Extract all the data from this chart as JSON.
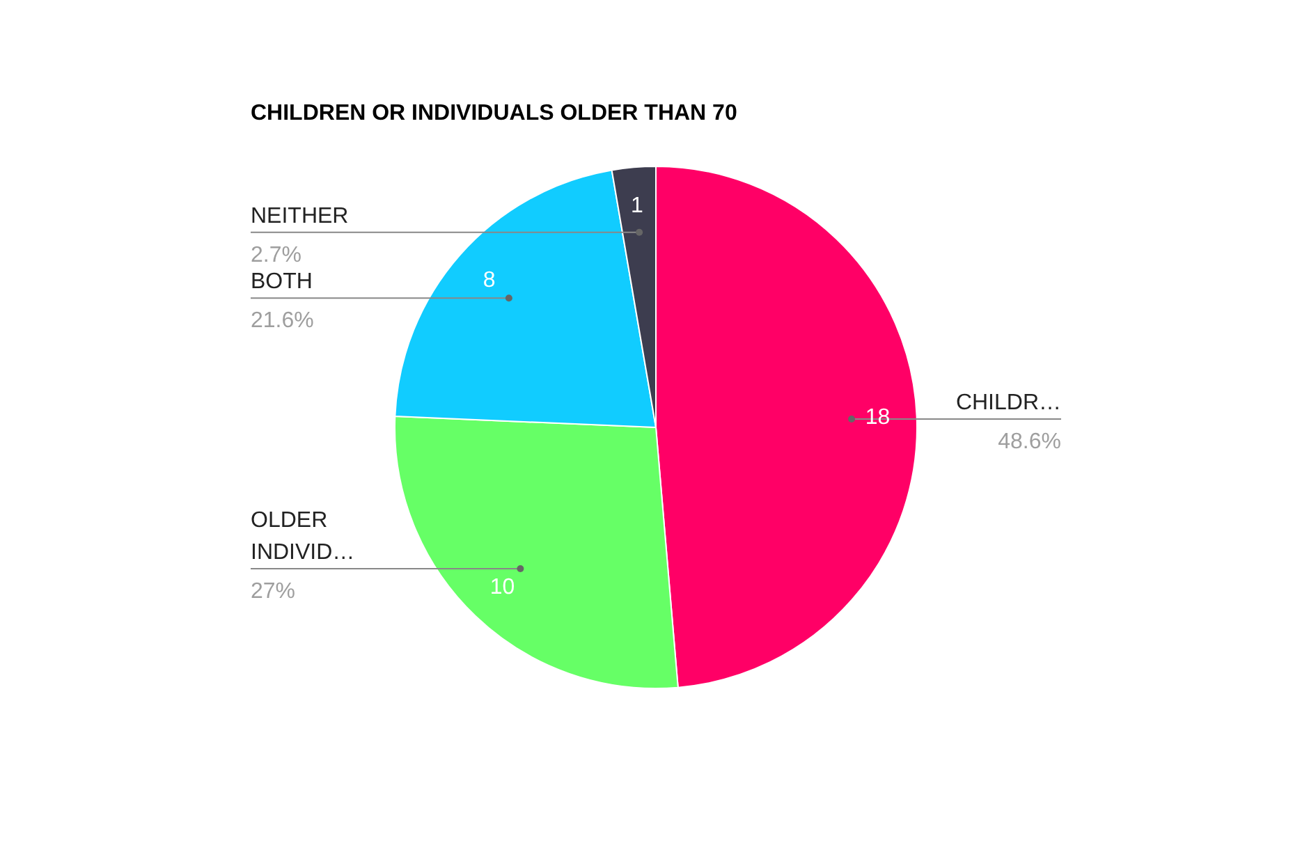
{
  "chart_data": {
    "type": "pie",
    "title": "CHILDREN OR INDIVIDUALS OLDER THAN 70",
    "categories": [
      "CHILDR…",
      "OLDER INDIVID…",
      "BOTH",
      "NEITHER"
    ],
    "values": [
      18,
      10,
      8,
      1
    ],
    "colors": [
      "#ff0066",
      "#66ff66",
      "#11ccff",
      "#3d3d4f"
    ],
    "annotations": [
      "48.6%",
      "27%",
      "21.6%",
      "2.7%"
    ],
    "data_labels": true,
    "legend": false
  }
}
